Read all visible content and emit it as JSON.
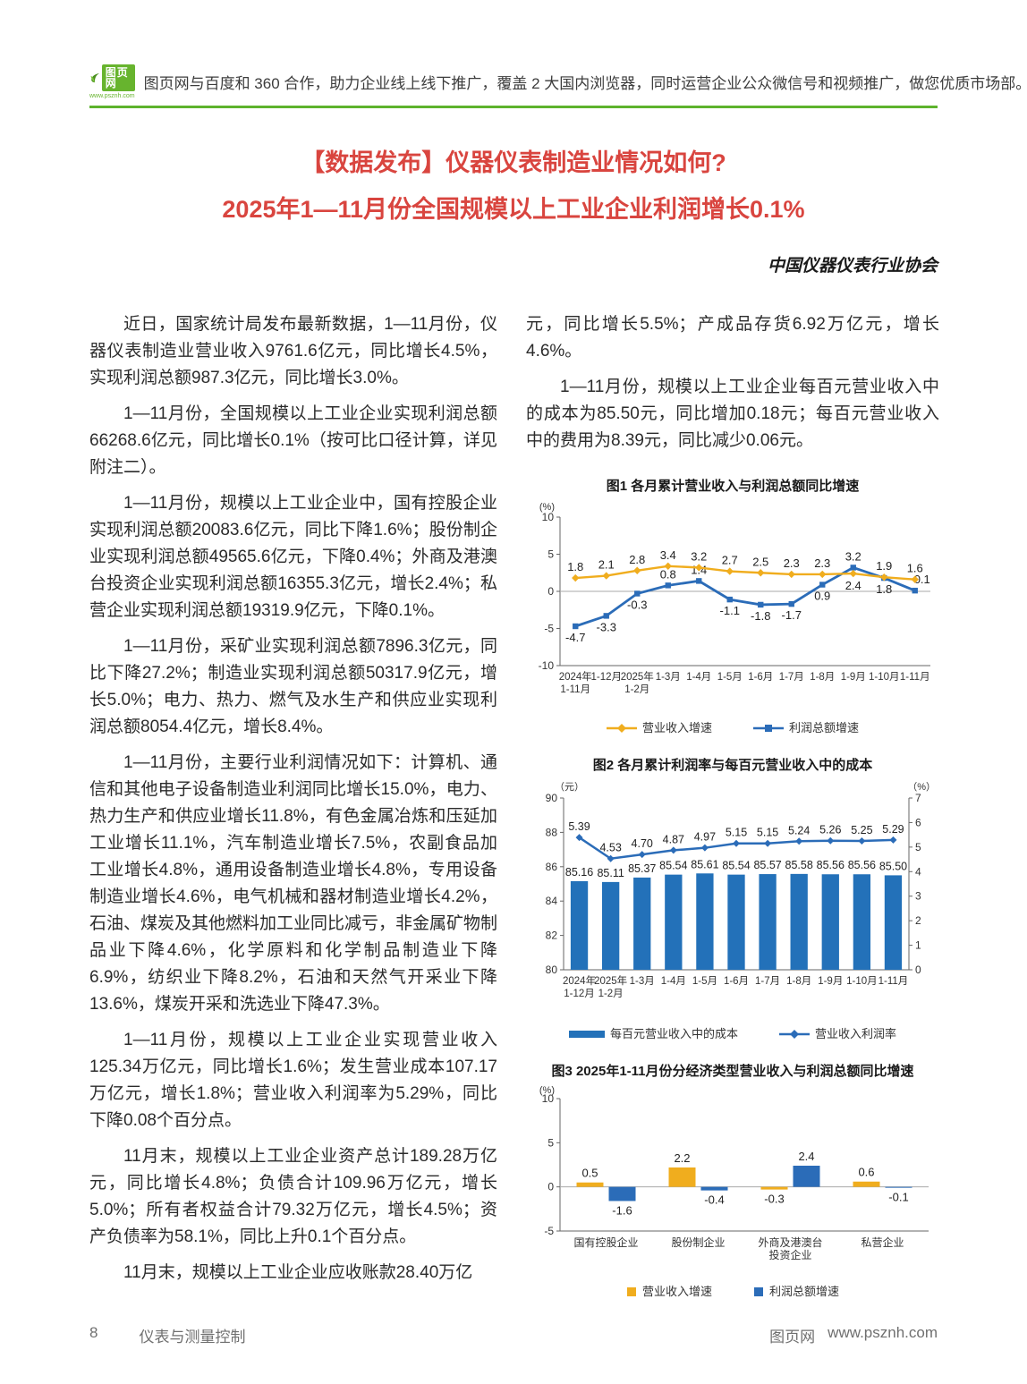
{
  "banner": {
    "logo_text": "图页网",
    "logo_url": "www.psznh.com",
    "text": "图页网与百度和 360 合作，助力企业线上线下推广，覆盖 2 大国内浏览器，同时运营企业公众微信号和视频推广，做您优质市场部。"
  },
  "title": {
    "line1": "【数据发布】仪器仪表制造业情况如何?",
    "line2": "2025年1—11月份全国规模以上工业企业利润增长0.1%"
  },
  "byline": "中国仪器仪表行业协会",
  "left_column": {
    "paragraphs": [
      "近日，国家统计局发布最新数据，1—11月份，仪器仪表制造业营业收入9761.6亿元，同比增长4.5%，实现利润总额987.3亿元，同比增长3.0%。",
      "1—11月份，全国规模以上工业企业实现利润总额66268.6亿元，同比增长0.1%（按可比口径计算，详见附注二）。",
      "1—11月份，规模以上工业企业中，国有控股企业实现利润总额20083.6亿元，同比下降1.6%；股份制企业实现利润总额49565.6亿元，下降0.4%；外商及港澳台投资企业实现利润总额16355.3亿元，增长2.4%；私营企业实现利润总额19319.9亿元，下降0.1%。",
      "1—11月份，采矿业实现利润总额7896.3亿元，同比下降27.2%；制造业实现利润总额50317.9亿元，增长5.0%；电力、热力、燃气及水生产和供应业实现利润总额8054.4亿元，增长8.4%。",
      "1—11月份，主要行业利润情况如下：计算机、通信和其他电子设备制造业利润同比增长15.0%，电力、热力生产和供应业增长11.8%，有色金属冶炼和压延加工业增长11.1%，汽车制造业增长7.5%，农副食品加工业增长4.8%，通用设备制造业增长4.8%，专用设备制造业增长4.6%，电气机械和器材制造业增长4.2%，石油、煤炭及其他燃料加工业同比减亏，非金属矿物制品业下降4.6%，化学原料和化学制品制造业下降6.9%，纺织业下降8.2%，石油和天然气开采业下降13.6%，煤炭开采和洗选业下降47.3%。",
      "1—11月份，规模以上工业企业实现营业收入125.34万亿元，同比增长1.6%；发生营业成本107.17万亿元，增长1.8%；营业收入利润率为5.29%，同比下降0.08个百分点。",
      "11月末，规模以上工业企业资产总计189.28万亿元，同比增长4.8%；负债合计109.96万亿元，增长5.0%；所有者权益合计79.32万亿元，增长4.5%；资产负债率为58.1%，同比上升0.1个百分点。",
      "11月末，规模以上工业企业应收账款28.40万亿"
    ]
  },
  "right_column": {
    "paragraphs": [
      "元，同比增长5.5%；产成品存货6.92万亿元，增长4.6%。",
      "1—11月份，规模以上工业企业每百元营业收入中的成本为85.50元，同比增加0.18元；每百元营业收入中的费用为8.39元，同比减少0.06元。"
    ]
  },
  "chart_data": [
    {
      "type": "line",
      "title": "图1 各月累计营业收入与利润总额同比增速",
      "ylabel": "(%)",
      "ylim": [
        -10,
        10
      ],
      "yticks": [
        10,
        5,
        0,
        -5,
        -10
      ],
      "grid": false,
      "legend_position": "bottom",
      "categories": [
        "2024年\n1-11月",
        "1-12月",
        "2025年\n1-2月",
        "1-3月",
        "1-4月",
        "1-5月",
        "1-6月",
        "1-7月",
        "1-8月",
        "1-9月",
        "1-10月",
        "1-11月"
      ],
      "series": [
        {
          "name": "营业收入增速",
          "marker": "diamond",
          "values": [
            1.8,
            2.1,
            2.8,
            3.4,
            3.2,
            2.7,
            2.5,
            2.3,
            2.3,
            2.4,
            1.9,
            1.6
          ]
        },
        {
          "name": "利润总额增速",
          "marker": "square",
          "values": [
            -4.7,
            -3.3,
            -0.3,
            0.8,
            1.4,
            -1.1,
            -1.8,
            -1.7,
            0.9,
            3.2,
            1.8,
            0.1
          ]
        }
      ]
    },
    {
      "type": "bar",
      "title": "图2 各月累计利润率与每百元营业收入中的成本",
      "left_axis": {
        "label": "（元）",
        "lim": [
          80,
          90
        ],
        "ticks": [
          90,
          88,
          86,
          84,
          82,
          80
        ]
      },
      "right_axis": {
        "label": "（%）",
        "lim": [
          0,
          7
        ],
        "ticks": [
          7,
          6,
          5,
          4,
          3,
          2,
          1,
          0
        ]
      },
      "categories": [
        "2024年\n1-12月",
        "2025年\n1-2月",
        "1-3月",
        "1-4月",
        "1-5月",
        "1-6月",
        "1-7月",
        "1-8月",
        "1-9月",
        "1-10月",
        "1-11月"
      ],
      "bar_series": {
        "name": "每百元营业收入中的成本",
        "values": [
          "85.16",
          "85.11",
          "85.37",
          "85.54",
          "85.61",
          "85.54",
          "85.57",
          "85.58",
          "85.56",
          "85.56",
          "85.50"
        ]
      },
      "line_series": {
        "name": "营业收入利润率",
        "marker": "diamond",
        "values": [
          "5.39",
          "4.53",
          "4.70",
          "4.87",
          "4.97",
          "5.15",
          "5.15",
          "5.24",
          "5.26",
          "5.25",
          "5.29"
        ]
      }
    },
    {
      "type": "bar",
      "title": "图3 2025年1-11月份分经济类型营业收入与利润总额同比增速",
      "ylabel": "(%)",
      "ylim": [
        -5,
        10
      ],
      "yticks": [
        10,
        5,
        0,
        -5
      ],
      "categories": [
        "国有控股企业",
        "股份制企业",
        "外商及港澳台\n投资企业",
        "私营企业"
      ],
      "series": [
        {
          "name": "营业收入增速",
          "values": [
            0.5,
            2.2,
            -0.3,
            0.6
          ]
        },
        {
          "name": "利润总额增速",
          "values": [
            -1.6,
            -0.4,
            2.4,
            -0.1
          ]
        }
      ]
    }
  ],
  "footer": {
    "page_number": "8",
    "journal_name": "仪表与测量控制",
    "site_name": "图页网",
    "site_url": "www.psznh.com"
  },
  "colors": {
    "title_red": "#d9453f",
    "brand_green": "#5db32d",
    "series_yellow": "#f0ad1e",
    "series_blue": "#2b6cb8",
    "bar_blue": "#2371b9",
    "axis_gray": "#666666",
    "grid_gray": "#aaaaaa"
  }
}
